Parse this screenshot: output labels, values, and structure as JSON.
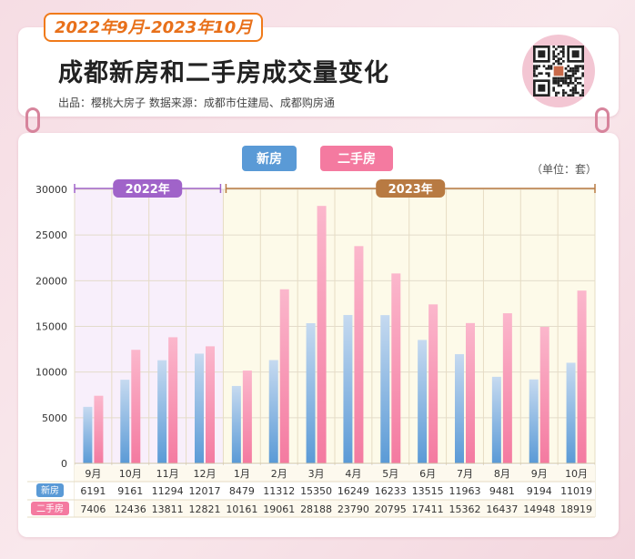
{
  "header": {
    "date_badge": "2022年9月-2023年10月",
    "title": "成都新房和二手房成交量变化",
    "source": "出品：樱桃大房子   数据来源：成都市住建局、成都购房通"
  },
  "colors": {
    "new_house": "#5a9ad6",
    "second_hand": "#f47aa0",
    "year_2022": "#a063c9",
    "year_2023": "#b87a42",
    "date_badge": "#e8701a"
  },
  "chart_data": {
    "type": "bar",
    "unit_label": "（单位：套）",
    "categories": [
      "9月",
      "10月",
      "11月",
      "12月",
      "1月",
      "2月",
      "3月",
      "4月",
      "5月",
      "6月",
      "7月",
      "8月",
      "9月",
      "10月"
    ],
    "year_groups": [
      {
        "label": "2022年",
        "start": 0,
        "end": 3
      },
      {
        "label": "2023年",
        "start": 4,
        "end": 13
      }
    ],
    "series": [
      {
        "name": "新房",
        "values": [
          6191,
          9161,
          11294,
          12017,
          8479,
          11312,
          15350,
          16249,
          16233,
          13515,
          11963,
          9481,
          9194,
          11019
        ]
      },
      {
        "name": "二手房",
        "values": [
          7406,
          12436,
          13811,
          12821,
          10161,
          19061,
          28188,
          23790,
          20795,
          17411,
          15362,
          16437,
          14948,
          18919
        ]
      }
    ],
    "ylim": [
      0,
      30000
    ],
    "yticks": [
      0,
      5000,
      10000,
      15000,
      20000,
      25000,
      30000
    ],
    "legend_position": "top",
    "grid": true
  }
}
